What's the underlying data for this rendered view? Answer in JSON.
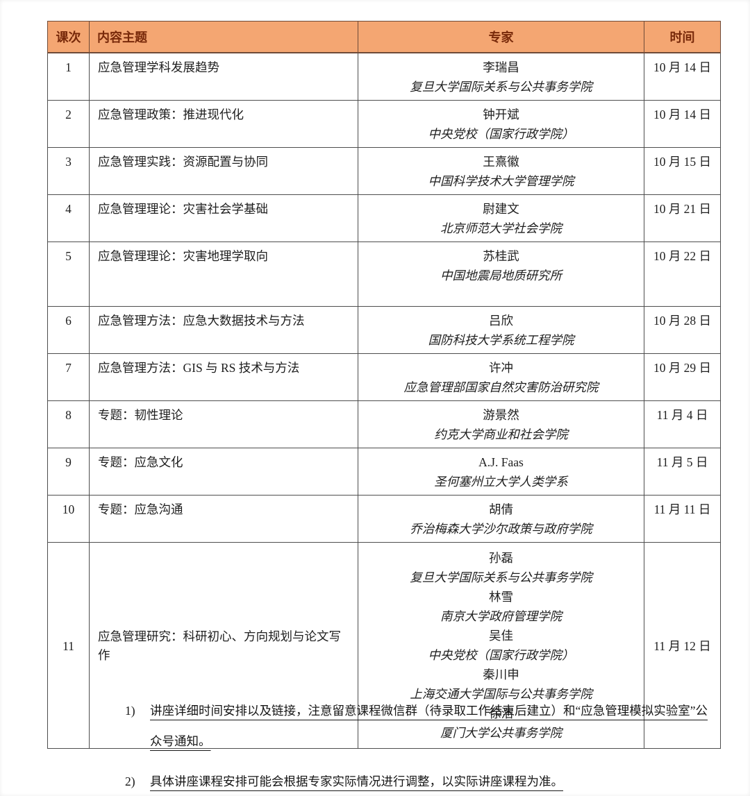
{
  "colors": {
    "header_bg": "#f4a672",
    "header_text": "#78290a",
    "grid_line": "#4d4d4d",
    "body_text": "#1e1e1e"
  },
  "table": {
    "headers": [
      "课次",
      "内容主题",
      "专家",
      "时间"
    ],
    "rows": [
      {
        "no": "1",
        "topic": "应急管理学科发展趋势",
        "experts": [
          {
            "name": "李瑞昌",
            "affiliation": "复旦大学国际关系与公共事务学院"
          }
        ],
        "date": "10 月 14 日"
      },
      {
        "no": "2",
        "topic": "应急管理政策：推进现代化",
        "experts": [
          {
            "name": "钟开斌",
            "affiliation": "中央党校（国家行政学院）"
          }
        ],
        "date": "10 月 14 日"
      },
      {
        "no": "3",
        "topic": "应急管理实践：资源配置与协同",
        "experts": [
          {
            "name": "王熹徽",
            "affiliation": "中国科学技术大学管理学院"
          }
        ],
        "date": "10 月 15 日"
      },
      {
        "no": "4",
        "topic": "应急管理理论：灾害社会学基础",
        "experts": [
          {
            "name": "尉建文",
            "affiliation": "北京师范大学社会学院"
          }
        ],
        "date": "10 月 21 日"
      },
      {
        "no": "5",
        "topic": "应急管理理论：灾害地理学取向",
        "experts": [
          {
            "name": "苏桂武",
            "affiliation": "中国地震局地质研究所"
          }
        ],
        "date": "10 月 22 日"
      },
      {
        "no": "6",
        "topic": "应急管理方法：应急大数据技术与方法",
        "experts": [
          {
            "name": "吕欣",
            "affiliation": "国防科技大学系统工程学院"
          }
        ],
        "date": "10 月 28 日"
      },
      {
        "no": "7",
        "topic": "应急管理方法：GIS 与 RS 技术与方法",
        "experts": [
          {
            "name": "许冲",
            "affiliation": "应急管理部国家自然灾害防治研究院"
          }
        ],
        "date": "10 月 29 日"
      },
      {
        "no": "8",
        "topic": "专题：韧性理论",
        "experts": [
          {
            "name": "游景然",
            "affiliation": "约克大学商业和社会学院"
          }
        ],
        "date": "11 月 4 日"
      },
      {
        "no": "9",
        "topic": "专题：应急文化",
        "experts": [
          {
            "name": "A.J. Faas",
            "affiliation": "圣何塞州立大学人类学系"
          }
        ],
        "date": "11 月 5 日"
      },
      {
        "no": "10",
        "topic": "专题：应急沟通",
        "experts": [
          {
            "name": "胡倩",
            "affiliation": "乔治梅森大学沙尔政策与政府学院"
          }
        ],
        "date": "11 月 11 日"
      },
      {
        "no": "11",
        "topic": "应急管理研究：科研初心、方向规划与论文写作",
        "experts": [
          {
            "name": "孙磊",
            "affiliation": "复旦大学国际关系与公共事务学院"
          },
          {
            "name": "林雪",
            "affiliation": "南京大学政府管理学院"
          },
          {
            "name": "吴佳",
            "affiliation": "中央党校（国家行政学院）"
          },
          {
            "name": "秦川申",
            "affiliation": "上海交通大学国际与公共事务学院"
          },
          {
            "name": "徐浩",
            "affiliation": "厦门大学公共事务学院"
          }
        ],
        "date": "11 月 12 日"
      }
    ]
  },
  "notes": [
    {
      "number": "1)",
      "text": "讲座详细时间安排以及链接，注意留意课程微信群（待录取工作结束后建立）和“应急管理模拟实验室”公众号通知。"
    },
    {
      "number": "2)",
      "text": "具体讲座课程安排可能会根据专家实际情况进行调整，以实际讲座课程为准。"
    }
  ]
}
